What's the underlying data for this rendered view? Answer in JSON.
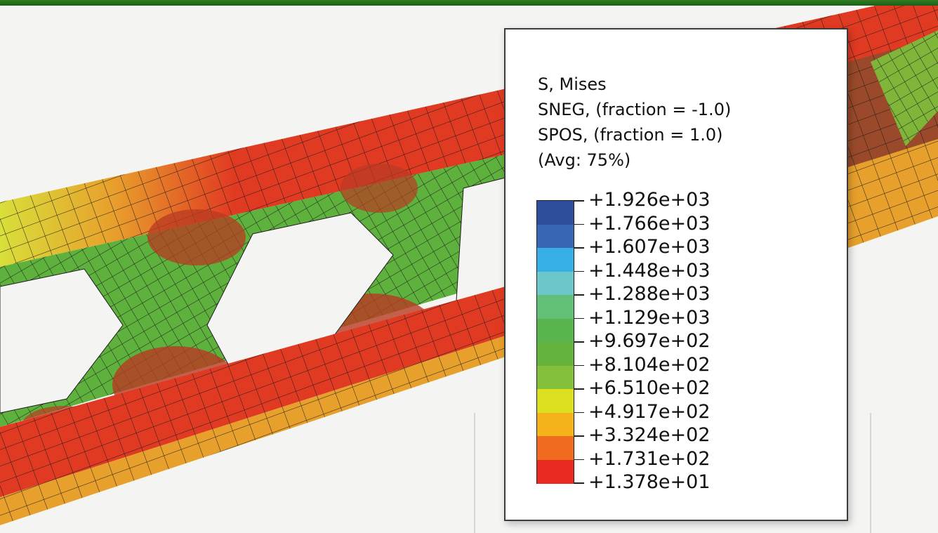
{
  "legend": {
    "title": "S, Mises",
    "line2": "SNEG, (fraction = -1.0)",
    "line3": "SPOS, (fraction = 1.0)",
    "line4": "(Avg: 75%)",
    "values": [
      "+1.926e+03",
      "+1.766e+03",
      "+1.607e+03",
      "+1.448e+03",
      "+1.288e+03",
      "+1.129e+03",
      "+9.697e+02",
      "+8.104e+02",
      "+6.510e+02",
      "+4.917e+02",
      "+3.324e+02",
      "+1.731e+02",
      "+1.378e+01"
    ],
    "colors": [
      "#2e4e9c",
      "#3866b4",
      "#38aee6",
      "#6cc8c8",
      "#62bf78",
      "#58b44c",
      "#64b33c",
      "#84c03a",
      "#dce020",
      "#f5b21a",
      "#f06b1e",
      "#e82a22"
    ]
  },
  "colors": {
    "top_bar": "#2a7320",
    "stress_high": "#e13a22",
    "stress_mid": "#6cb63a",
    "stress_warm": "#f0a02a"
  }
}
